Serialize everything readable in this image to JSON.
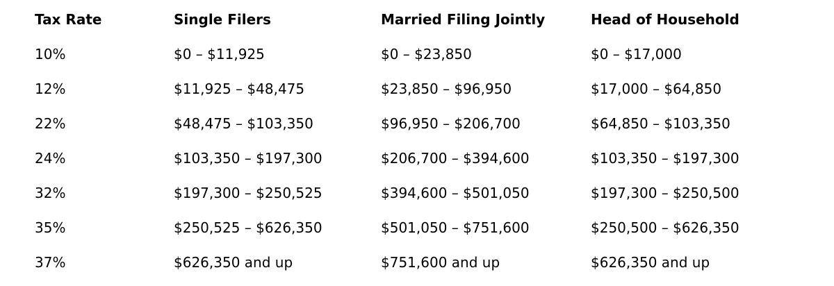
{
  "page": {
    "background_color": "#ffffff",
    "text_color": "#000000"
  },
  "table": {
    "headers": [
      "Tax Rate",
      "Single Filers",
      "Married Filing Jointly",
      "Head of Household"
    ],
    "rows": [
      [
        "10%",
        "$0 – $11,925",
        "$0 – $23,850",
        "$0 – $17,000"
      ],
      [
        "12%",
        "$11,925 – $48,475",
        "$23,850 – $96,950",
        "$17,000 – $64,850"
      ],
      [
        "22%",
        "$48,475 – $103,350",
        "$96,950 – $206,700",
        "$64,850 – $103,350"
      ],
      [
        "24%",
        "$103,350 – $197,300",
        "$206,700 – $394,600",
        "$103,350 – $197,300"
      ],
      [
        "32%",
        "$197,300 – $250,525",
        "$394,600 – $501,050",
        "$197,300 – $250,500"
      ],
      [
        "35%",
        "$250,525 – $626,350",
        "$501,050 – $751,600",
        "$250,500 – $626,350"
      ],
      [
        "37%",
        "$626,350 and up",
        "$751,600 and up",
        "$626,350 and up"
      ]
    ]
  }
}
